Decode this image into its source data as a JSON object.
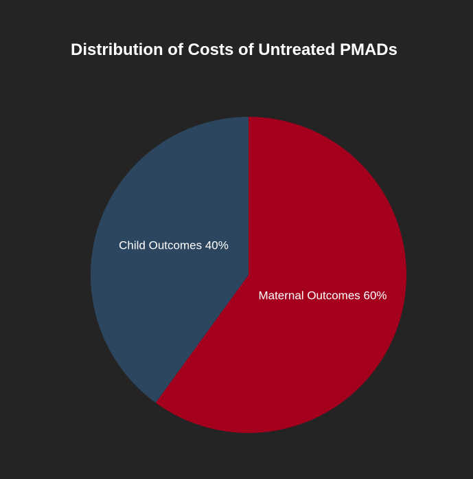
{
  "chart_data": {
    "type": "pie",
    "title": "Distribution of Costs of Untreated PMADs",
    "slices": [
      {
        "label": "Maternal Outcomes",
        "value": 60,
        "display": "Maternal Outcomes 60%",
        "color": "#a4001e"
      },
      {
        "label": "Child Outcomes",
        "value": 40,
        "display": "Child Outcomes 40%",
        "color": "#2d465f"
      }
    ],
    "legend": "none"
  }
}
